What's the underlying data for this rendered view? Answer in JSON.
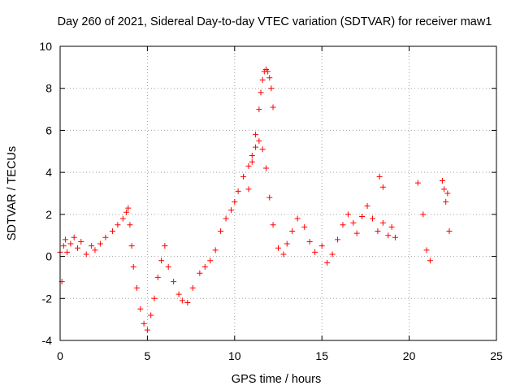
{
  "chart_data": {
    "type": "scatter",
    "title": "Day 260 of 2021, Sidereal Day-to-day VTEC variation (SDTVAR) for receiver maw1",
    "xlabel": "GPS time / hours",
    "ylabel": "SDTVAR / TECUs",
    "xlim": [
      0,
      25
    ],
    "ylim": [
      -4,
      10
    ],
    "xticks": [
      0,
      5,
      10,
      15,
      20,
      25
    ],
    "yticks": [
      -4,
      -2,
      0,
      2,
      4,
      6,
      8,
      10
    ],
    "grid": true,
    "marker": "+",
    "color": "#ff0000",
    "series": [
      {
        "name": "main",
        "x": [
          0,
          0.1,
          0.2,
          0.3,
          0.4,
          0.6,
          0.8,
          1.0,
          1.2,
          1.5,
          1.8,
          2.0,
          2.3,
          2.6,
          3.0,
          3.3,
          3.6,
          3.8,
          3.9,
          4.0,
          4.1,
          4.2,
          4.4,
          4.6,
          4.8,
          5.0,
          5.2,
          5.4,
          5.6,
          5.8,
          6.0,
          6.2,
          6.5,
          6.8,
          7.0,
          7.3,
          7.6,
          8.0,
          8.3,
          8.6,
          8.9,
          9.2,
          9.5,
          9.8,
          10.0,
          10.2,
          10.5,
          10.8,
          11.0,
          11.2,
          11.4,
          11.6,
          11.8,
          12.0,
          12.2,
          12.5,
          12.8,
          13.0,
          13.3,
          13.6,
          14.0,
          14.3,
          14.6,
          15.0,
          15.3,
          15.6,
          15.9,
          16.2,
          16.5,
          16.8,
          17.0,
          17.3,
          17.6,
          17.9,
          18.2,
          18.5,
          18.8,
          19.0,
          19.2
        ],
        "y": [
          0.2,
          -1.2,
          0.5,
          0.8,
          0.2,
          0.6,
          0.9,
          0.4,
          0.7,
          0.1,
          0.5,
          0.3,
          0.6,
          0.9,
          1.2,
          1.5,
          1.8,
          2.1,
          2.3,
          1.5,
          0.5,
          -0.5,
          -1.5,
          -2.5,
          -3.2,
          -3.5,
          -2.8,
          -2.0,
          -1.0,
          -0.2,
          0.5,
          -0.5,
          -1.2,
          -1.8,
          -2.1,
          -2.2,
          -1.5,
          -0.8,
          -0.5,
          -0.2,
          0.3,
          1.2,
          1.8,
          2.2,
          2.6,
          3.1,
          3.8,
          4.3,
          4.8,
          5.2,
          5.5,
          5.1,
          4.2,
          2.8,
          1.5,
          0.4,
          0.1,
          0.6,
          1.2,
          1.8,
          1.4,
          0.7,
          0.2,
          0.5,
          -0.3,
          0.1,
          0.8,
          1.5,
          2.0,
          1.6,
          1.1,
          1.9,
          2.4,
          1.8,
          1.2,
          1.6,
          1.0,
          1.4,
          0.9
        ]
      },
      {
        "name": "peak",
        "x": [
          10.8,
          11.0,
          11.2,
          11.4,
          11.5,
          11.6,
          11.7,
          11.8,
          11.9,
          12.0,
          12.1,
          12.2
        ],
        "y": [
          3.2,
          4.5,
          5.8,
          7.0,
          7.8,
          8.4,
          8.8,
          8.9,
          8.8,
          8.5,
          8.0,
          7.1
        ]
      },
      {
        "name": "late",
        "x": [
          18.3,
          18.5,
          20.5,
          20.8,
          21.0,
          21.2,
          21.9,
          22.0,
          22.1,
          22.2,
          22.3
        ],
        "y": [
          3.8,
          3.3,
          3.5,
          2.0,
          0.3,
          -0.2,
          3.6,
          3.2,
          2.6,
          3.0,
          1.2
        ]
      }
    ]
  }
}
